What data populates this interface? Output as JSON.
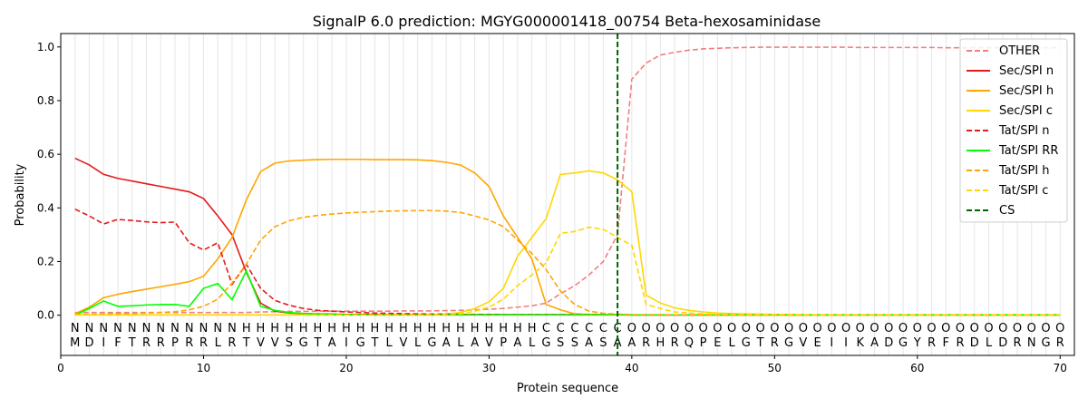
{
  "chart_data": {
    "type": "line",
    "title": "SignalP 6.0 prediction: MGYG000001418_00754 Beta-hexosaminidase",
    "xlabel": "Protein sequence",
    "ylabel": "Probability",
    "xlim": [
      0,
      71
    ],
    "ylim": [
      -0.15,
      1.05
    ],
    "xticks": [
      0,
      10,
      20,
      30,
      40,
      50,
      60,
      70
    ],
    "yticks": [
      0.0,
      0.2,
      0.4,
      0.6,
      0.8,
      1.0
    ],
    "x_tick_labels": [
      "0",
      "10",
      "20",
      "30",
      "40",
      "50",
      "60",
      "70"
    ],
    "y_tick_labels": [
      "0.0",
      "0.2",
      "0.4",
      "0.6",
      "0.8",
      "1.0"
    ],
    "grid": "vertical lines at each residue",
    "legend_position": "top-right",
    "sequence": "MDIFTRRPRRLRTVVSGTAIGTLVLGALAVPALGSSASAARHRQPELGTRGVEIIKADGYRFRDLDRNGR",
    "labels": "NNNNNNNNNNNNHHHHHHHHHHHHHHHHHHHHHCCCCCCOOOOOOOOOOOOOOOOOOOOOOOOOOOOOOO",
    "label_colors": {
      "N": "#ff0000",
      "H": "#ffa500",
      "C": "#ffd700",
      "O": "#808080"
    },
    "cleavage_site": 39,
    "series": [
      {
        "name": "OTHER",
        "color": "#f08080",
        "dash": "dashed",
        "values": [
          0.01,
          0.01,
          0.01,
          0.01,
          0.01,
          0.01,
          0.01,
          0.01,
          0.01,
          0.01,
          0.01,
          0.01,
          0.01,
          0.012,
          0.013,
          0.014,
          0.014,
          0.015,
          0.015,
          0.015,
          0.015,
          0.015,
          0.015,
          0.016,
          0.016,
          0.016,
          0.017,
          0.018,
          0.02,
          0.022,
          0.025,
          0.03,
          0.035,
          0.045,
          0.08,
          0.11,
          0.15,
          0.2,
          0.3,
          0.88,
          0.94,
          0.97,
          0.98,
          0.988,
          0.993,
          0.995,
          0.997,
          0.998,
          0.999,
          0.999,
          0.999,
          0.999,
          0.999,
          0.999,
          0.999,
          0.998,
          0.998,
          0.998,
          0.998,
          0.998,
          0.998,
          0.997,
          0.997,
          0.997,
          0.997,
          0.997,
          0.997,
          0.997,
          0.997,
          0.997
        ]
      },
      {
        "name": "Sec/SPI n",
        "color": "#e41a1c",
        "dash": "solid",
        "values": [
          0.585,
          0.56,
          0.525,
          0.51,
          0.5,
          0.49,
          0.48,
          0.47,
          0.46,
          0.435,
          0.37,
          0.3,
          0.16,
          0.045,
          0.015,
          0.008,
          0.006,
          0.005,
          0.004,
          0.003,
          0.003,
          0.003,
          0.002,
          0.002,
          0.002,
          0.002,
          0.002,
          0.002,
          0.002,
          0.002,
          0.002,
          0.002,
          0.002,
          0.002,
          0.002,
          0.002,
          0.002,
          0.002,
          0.002,
          0.001,
          0.001,
          0.001,
          0.001,
          0.001,
          0.001,
          0.001,
          0.001,
          0.001,
          0.001,
          0.001,
          0.001,
          0.001,
          0.001,
          0.001,
          0.001,
          0.001,
          0.001,
          0.001,
          0.001,
          0.001,
          0.001,
          0.001,
          0.001,
          0.001,
          0.001,
          0.001,
          0.001,
          0.001,
          0.001,
          0.001
        ]
      },
      {
        "name": "Sec/SPI h",
        "color": "#ffa500",
        "dash": "solid",
        "values": [
          0.005,
          0.03,
          0.065,
          0.078,
          0.088,
          0.097,
          0.106,
          0.115,
          0.125,
          0.145,
          0.21,
          0.29,
          0.43,
          0.535,
          0.567,
          0.575,
          0.578,
          0.58,
          0.581,
          0.581,
          0.581,
          0.58,
          0.58,
          0.58,
          0.579,
          0.576,
          0.57,
          0.56,
          0.53,
          0.48,
          0.37,
          0.29,
          0.21,
          0.04,
          0.02,
          0.005,
          0.003,
          0.002,
          0.002,
          0.001,
          0.001,
          0.001,
          0.001,
          0.001,
          0.001,
          0.001,
          0.001,
          0.001,
          0.001,
          0.001,
          0.001,
          0.001,
          0.001,
          0.001,
          0.001,
          0.001,
          0.001,
          0.001,
          0.001,
          0.001,
          0.001,
          0.001,
          0.001,
          0.001,
          0.001,
          0.001,
          0.001,
          0.001,
          0.001,
          0.001
        ]
      },
      {
        "name": "Sec/SPI c",
        "color": "#ffd700",
        "dash": "solid",
        "values": [
          0.001,
          0.001,
          0.001,
          0.001,
          0.001,
          0.001,
          0.001,
          0.001,
          0.001,
          0.001,
          0.001,
          0.001,
          0.001,
          0.001,
          0.001,
          0.001,
          0.001,
          0.001,
          0.001,
          0.001,
          0.001,
          0.001,
          0.001,
          0.001,
          0.001,
          0.002,
          0.004,
          0.01,
          0.025,
          0.05,
          0.1,
          0.22,
          0.29,
          0.36,
          0.525,
          0.53,
          0.538,
          0.53,
          0.505,
          0.46,
          0.075,
          0.045,
          0.027,
          0.018,
          0.012,
          0.008,
          0.006,
          0.005,
          0.004,
          0.003,
          0.003,
          0.002,
          0.002,
          0.002,
          0.002,
          0.002,
          0.002,
          0.002,
          0.002,
          0.002,
          0.002,
          0.002,
          0.002,
          0.002,
          0.002,
          0.002,
          0.002,
          0.002,
          0.002,
          0.002
        ]
      },
      {
        "name": "Tat/SPI n",
        "color": "#e41a1c",
        "dash": "dashed",
        "values": [
          0.395,
          0.37,
          0.34,
          0.357,
          0.353,
          0.348,
          0.345,
          0.347,
          0.27,
          0.243,
          0.27,
          0.115,
          0.19,
          0.1,
          0.055,
          0.037,
          0.025,
          0.018,
          0.015,
          0.012,
          0.01,
          0.008,
          0.007,
          0.006,
          0.005,
          0.004,
          0.004,
          0.003,
          0.003,
          0.003,
          0.002,
          0.002,
          0.002,
          0.002,
          0.002,
          0.002,
          0.002,
          0.002,
          0.002,
          0.001,
          0.001,
          0.001,
          0.001,
          0.001,
          0.001,
          0.001,
          0.001,
          0.001,
          0.001,
          0.001,
          0.001,
          0.001,
          0.001,
          0.001,
          0.001,
          0.001,
          0.001,
          0.001,
          0.001,
          0.001,
          0.001,
          0.001,
          0.001,
          0.001,
          0.001,
          0.001,
          0.001,
          0.001,
          0.001,
          0.001
        ]
      },
      {
        "name": "Tat/SPI RR",
        "color": "#00ff00",
        "dash": "solid",
        "values": [
          0.0,
          0.025,
          0.053,
          0.033,
          0.035,
          0.038,
          0.04,
          0.04,
          0.033,
          0.1,
          0.118,
          0.058,
          0.165,
          0.033,
          0.018,
          0.01,
          0.006,
          0.004,
          0.003,
          0.002,
          0.002,
          0.001,
          0.001,
          0.001,
          0.001,
          0.001,
          0.001,
          0.001,
          0.001,
          0.001,
          0.001,
          0.001,
          0.001,
          0.001,
          0.001,
          0.001,
          0.001,
          0.001,
          0.001,
          0.001,
          0.001,
          0.001,
          0.001,
          0.001,
          0.001,
          0.001,
          0.001,
          0.001,
          0.001,
          0.001,
          0.001,
          0.001,
          0.001,
          0.001,
          0.001,
          0.001,
          0.001,
          0.001,
          0.001,
          0.001,
          0.001,
          0.001,
          0.001,
          0.001,
          0.001,
          0.001,
          0.001,
          0.001,
          0.001,
          0.001
        ]
      },
      {
        "name": "Tat/SPI h",
        "color": "#ffa500",
        "dash": "dashed",
        "values": [
          0.003,
          0.003,
          0.004,
          0.005,
          0.006,
          0.008,
          0.01,
          0.013,
          0.02,
          0.033,
          0.06,
          0.12,
          0.19,
          0.28,
          0.33,
          0.352,
          0.365,
          0.372,
          0.377,
          0.381,
          0.384,
          0.386,
          0.388,
          0.389,
          0.39,
          0.39,
          0.388,
          0.383,
          0.37,
          0.355,
          0.33,
          0.28,
          0.23,
          0.17,
          0.09,
          0.04,
          0.015,
          0.007,
          0.004,
          0.002,
          0.002,
          0.002,
          0.001,
          0.001,
          0.001,
          0.001,
          0.001,
          0.001,
          0.001,
          0.001,
          0.001,
          0.001,
          0.001,
          0.001,
          0.001,
          0.001,
          0.001,
          0.001,
          0.001,
          0.001,
          0.001,
          0.001,
          0.001,
          0.001,
          0.001,
          0.001,
          0.001,
          0.001,
          0.001,
          0.001
        ]
      },
      {
        "name": "Tat/SPI c",
        "color": "#ffd700",
        "dash": "dashed",
        "values": [
          0.001,
          0.001,
          0.001,
          0.001,
          0.001,
          0.001,
          0.001,
          0.001,
          0.001,
          0.001,
          0.001,
          0.001,
          0.001,
          0.001,
          0.001,
          0.001,
          0.001,
          0.001,
          0.001,
          0.001,
          0.001,
          0.001,
          0.001,
          0.001,
          0.001,
          0.001,
          0.002,
          0.005,
          0.015,
          0.03,
          0.06,
          0.11,
          0.15,
          0.195,
          0.305,
          0.312,
          0.328,
          0.32,
          0.29,
          0.26,
          0.04,
          0.025,
          0.012,
          0.008,
          0.005,
          0.004,
          0.003,
          0.002,
          0.002,
          0.002,
          0.002,
          0.001,
          0.001,
          0.001,
          0.001,
          0.001,
          0.001,
          0.001,
          0.001,
          0.001,
          0.001,
          0.001,
          0.001,
          0.001,
          0.001,
          0.001,
          0.001,
          0.001,
          0.001,
          0.001
        ]
      }
    ],
    "legend": [
      "OTHER",
      "Sec/SPI n",
      "Sec/SPI h",
      "Sec/SPI c",
      "Tat/SPI n",
      "Tat/SPI RR",
      "Tat/SPI h",
      "Tat/SPI c",
      "CS"
    ],
    "cs_color": "#006400"
  }
}
